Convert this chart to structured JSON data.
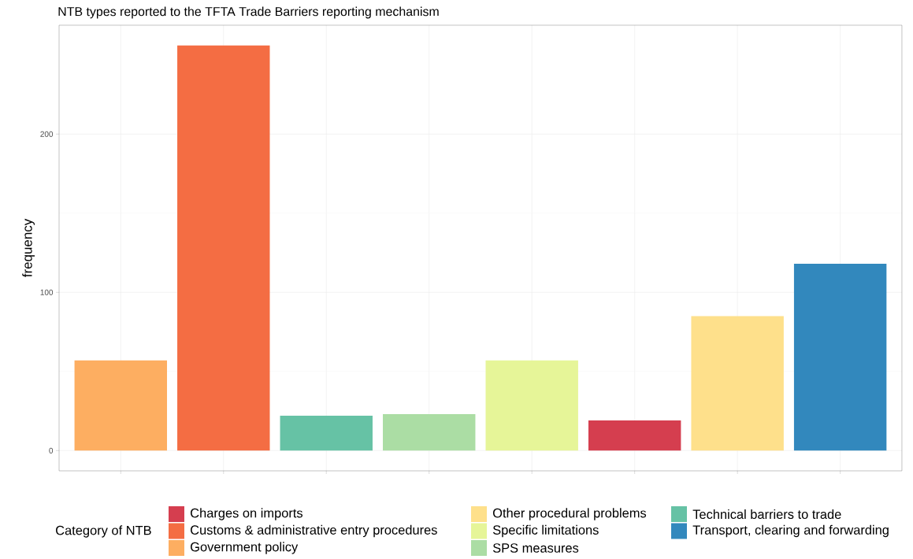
{
  "chart_data": {
    "type": "bar",
    "title": "NTB types reported to the TFTA Trade Barriers reporting mechanism",
    "ylabel": "frequency",
    "legend_title": "Category of NTB",
    "categories": [
      null,
      null,
      null,
      null,
      null,
      null,
      null,
      null
    ],
    "series": [
      {
        "name": "Charges on imports",
        "color": "#d53e4f",
        "values": [
          null,
          null,
          null,
          null,
          null,
          19,
          null,
          null
        ]
      },
      {
        "name": "Customs & administrative entry procedures",
        "color": "#f46d43",
        "values": [
          null,
          256,
          null,
          null,
          null,
          null,
          null,
          null
        ]
      },
      {
        "name": "Government policy",
        "color": "#fdae61",
        "values": [
          57,
          null,
          null,
          null,
          null,
          null,
          null,
          null
        ]
      },
      {
        "name": "Other procedural problems",
        "color": "#fee08b",
        "values": [
          null,
          null,
          null,
          null,
          null,
          null,
          85,
          null
        ]
      },
      {
        "name": "Specific limitations",
        "color": "#e6f598",
        "values": [
          null,
          null,
          null,
          null,
          57,
          null,
          null,
          null
        ]
      },
      {
        "name": "SPS measures",
        "color": "#abdda4",
        "values": [
          null,
          null,
          null,
          23,
          null,
          null,
          null,
          null
        ]
      },
      {
        "name": "Technical barriers to trade",
        "color": "#66c2a5",
        "values": [
          null,
          null,
          22,
          null,
          null,
          null,
          null,
          null
        ]
      },
      {
        "name": "Transport, clearing and forwarding",
        "color": "#3288bd",
        "values": [
          null,
          null,
          null,
          null,
          null,
          null,
          null,
          118
        ]
      }
    ],
    "ylim": [
      -12.8,
      268.8
    ],
    "yticks": [
      0,
      100,
      200
    ],
    "grid": true,
    "legend": "bottom",
    "tick_labels": "y"
  }
}
